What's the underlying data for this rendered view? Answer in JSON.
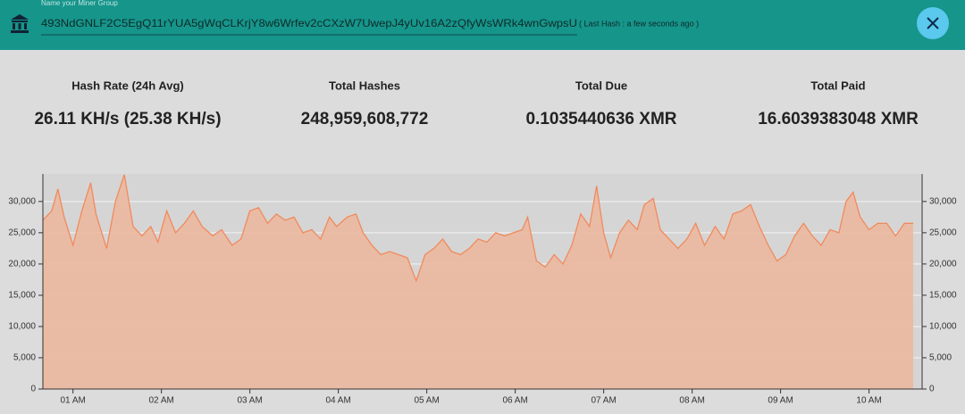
{
  "header": {
    "input_label": "Name your Miner Group",
    "address": "493NdGNLF2C5EgQ11rYUA5gWqCLKrjY8w6Wrfev2cCXzW7UwepJ4yUv16A2zQfyWsWRk4wnGwpsU",
    "last_hash": "( Last Hash : a few seconds ago )"
  },
  "stats": [
    {
      "label": "Hash Rate (24h Avg)",
      "value": "26.11 KH/s (25.38 KH/s)"
    },
    {
      "label": "Total Hashes",
      "value": "248,959,608,772"
    },
    {
      "label": "Total Due",
      "value": "0.1035440636 XMR"
    },
    {
      "label": "Total Paid",
      "value": "16.6039383048 XMR"
    }
  ],
  "chart_data": {
    "type": "area",
    "x": [
      0.66,
      0.76,
      0.83,
      0.9,
      1.0,
      1.1,
      1.2,
      1.26,
      1.38,
      1.48,
      1.58,
      1.68,
      1.78,
      1.88,
      1.96,
      2.06,
      2.16,
      2.26,
      2.36,
      2.46,
      2.58,
      2.68,
      2.8,
      2.9,
      3.0,
      3.1,
      3.2,
      3.3,
      3.4,
      3.5,
      3.6,
      3.7,
      3.8,
      3.9,
      3.98,
      4.1,
      4.2,
      4.28,
      4.38,
      4.48,
      4.58,
      4.68,
      4.78,
      4.88,
      4.98,
      5.08,
      5.18,
      5.28,
      5.38,
      5.48,
      5.58,
      5.68,
      5.78,
      5.88,
      5.98,
      6.08,
      6.14,
      6.24,
      6.34,
      6.44,
      6.54,
      6.64,
      6.74,
      6.84,
      6.92,
      7.0,
      7.08,
      7.18,
      7.28,
      7.38,
      7.46,
      7.56,
      7.64,
      7.74,
      7.84,
      7.94,
      8.04,
      8.14,
      8.26,
      8.36,
      8.46,
      8.56,
      8.66,
      8.76,
      8.86,
      8.96,
      9.06,
      9.16,
      9.26,
      9.36,
      9.46,
      9.56,
      9.66,
      9.74,
      9.82,
      9.9,
      10.0,
      10.1,
      10.2,
      10.3,
      10.4,
      10.5
    ],
    "values": [
      27000,
      28500,
      32000,
      27500,
      23000,
      28500,
      33000,
      28000,
      22500,
      30000,
      34300,
      26000,
      24500,
      26000,
      23500,
      28500,
      25000,
      26500,
      28500,
      26000,
      24500,
      25500,
      23000,
      24000,
      28500,
      29000,
      26500,
      28000,
      27000,
      27500,
      25000,
      25500,
      24000,
      27500,
      26000,
      27500,
      28000,
      25000,
      23000,
      21500,
      22000,
      21500,
      21000,
      17300,
      21500,
      22500,
      24000,
      22000,
      21500,
      22500,
      24000,
      23500,
      25000,
      24500,
      25000,
      25500,
      27500,
      20500,
      19500,
      21500,
      20000,
      23000,
      28000,
      26000,
      32500,
      25000,
      21000,
      25000,
      27000,
      25500,
      29500,
      30500,
      25500,
      24000,
      22500,
      24000,
      26500,
      23000,
      26000,
      24000,
      28000,
      28500,
      29500,
      26000,
      23000,
      20500,
      21500,
      24500,
      26500,
      24500,
      23000,
      25500,
      25000,
      30000,
      31500,
      27500,
      25500,
      26500,
      26500,
      24500,
      26500,
      26500
    ],
    "color": "#f08a5d",
    "fill": "#ebb89f",
    "xlim": [
      0.66,
      10.6
    ],
    "xticks": [
      {
        "value": 1,
        "label": "01 AM"
      },
      {
        "value": 2,
        "label": "02 AM"
      },
      {
        "value": 3,
        "label": "03 AM"
      },
      {
        "value": 4,
        "label": "04 AM"
      },
      {
        "value": 5,
        "label": "05 AM"
      },
      {
        "value": 6,
        "label": "06 AM"
      },
      {
        "value": 7,
        "label": "07 AM"
      },
      {
        "value": 8,
        "label": "08 AM"
      },
      {
        "value": 9,
        "label": "09 AM"
      },
      {
        "value": 10,
        "label": "10 AM"
      }
    ],
    "ylim": [
      0,
      34400
    ],
    "yticks": [
      0,
      {
        "value": 5000,
        "label": "5,000"
      },
      {
        "value": 10000,
        "label": "10,000"
      },
      {
        "value": 15000,
        "label": "15,000"
      },
      {
        "value": 20000,
        "label": "20,000"
      },
      {
        "value": 25000,
        "label": "25,000"
      },
      {
        "value": 30000,
        "label": "30,000"
      }
    ],
    "grid": true
  }
}
